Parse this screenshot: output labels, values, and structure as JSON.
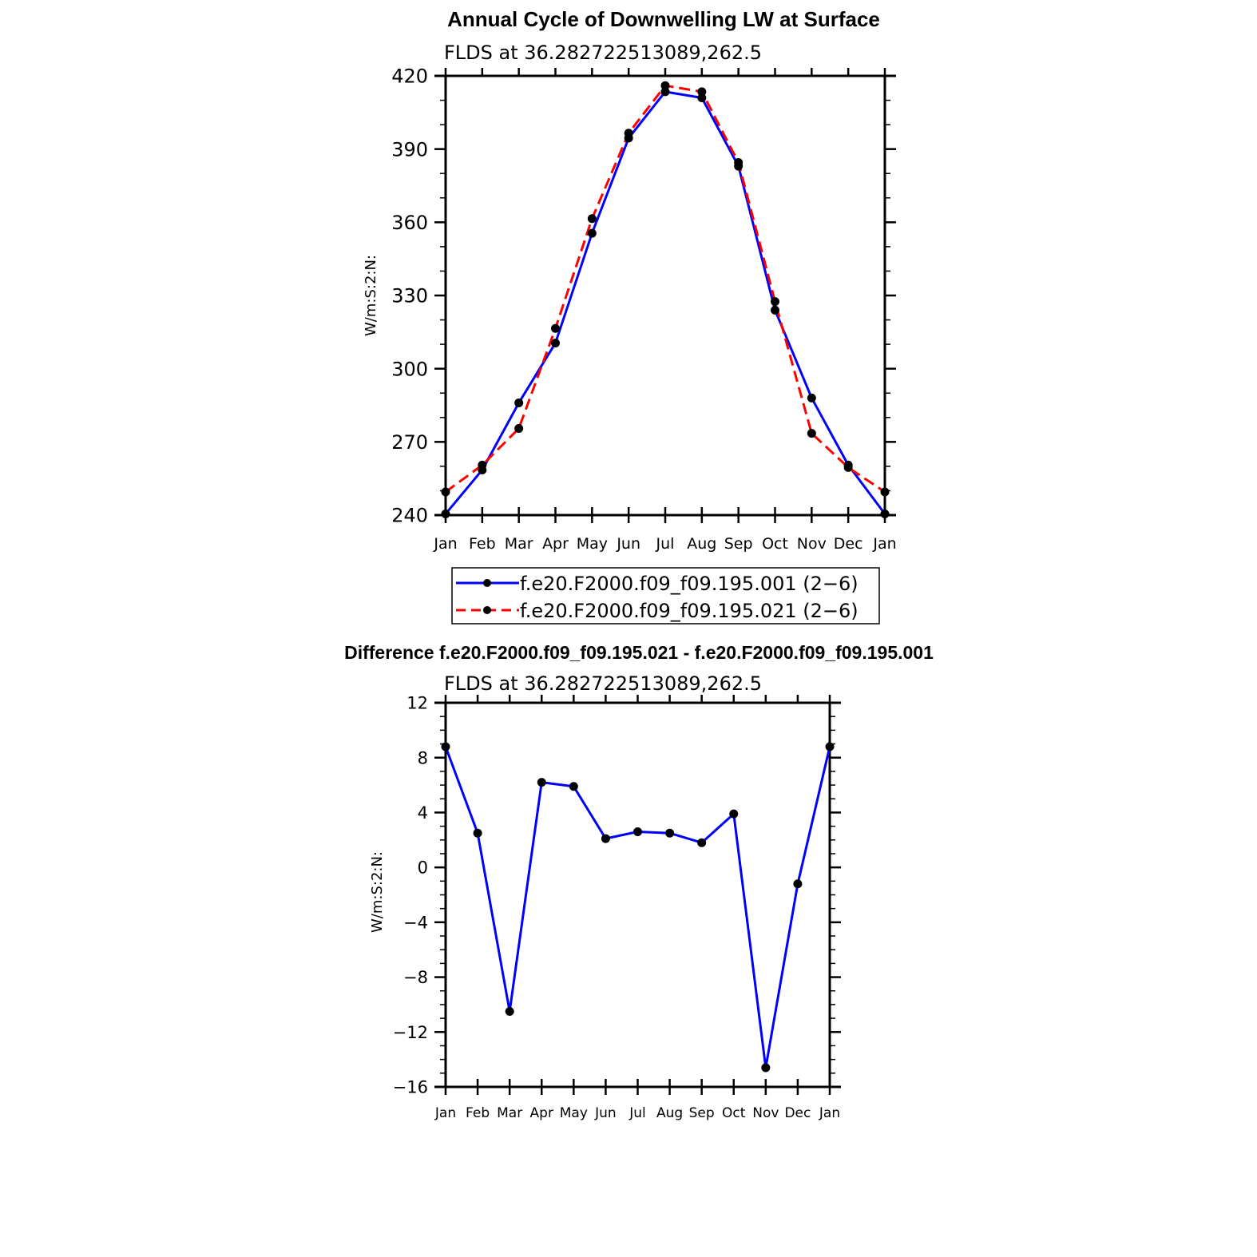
{
  "chart_data": [
    {
      "type": "line",
      "title": "Annual Cycle of Downwelling LW at Surface",
      "subtitle": "FLDS  at  36.282722513089,262.5",
      "ylabel": "W/m:S:2:N:",
      "xlabel": "",
      "categories": [
        "Jan",
        "Feb",
        "Mar",
        "Apr",
        "May",
        "Jun",
        "Jul",
        "Aug",
        "Sep",
        "Oct",
        "Nov",
        "Dec",
        "Jan"
      ],
      "ylim": [
        240,
        420
      ],
      "yticks": [
        240,
        270,
        300,
        330,
        360,
        390,
        420
      ],
      "grid": false,
      "legend_position": "below",
      "series": [
        {
          "name": "f.e20.F2000.f09_f09.195.001 (2−6)",
          "color": "#0000ff",
          "dash": "solid",
          "values": [
            240.5,
            258.5,
            286.0,
            310.5,
            355.5,
            394.5,
            413.5,
            411.0,
            383.0,
            324.0,
            288.0,
            260.5,
            240.5
          ]
        },
        {
          "name": "f.e20.F2000.f09_f09.195.021 (2−6)",
          "color": "#ff0000",
          "dash": "dashed",
          "values": [
            249.5,
            260.5,
            275.5,
            316.5,
            361.5,
            396.5,
            416.0,
            413.5,
            384.5,
            327.5,
            273.5,
            259.5,
            249.5
          ]
        }
      ]
    },
    {
      "type": "line",
      "title": "Difference f.e20.F2000.f09_f09.195.021 - f.e20.F2000.f09_f09.195.001",
      "subtitle": "FLDS  at  36.282722513089,262.5",
      "ylabel": "W/m:S:2:N:",
      "xlabel": "",
      "categories": [
        "Jan",
        "Feb",
        "Mar",
        "Apr",
        "May",
        "Jun",
        "Jul",
        "Aug",
        "Sep",
        "Oct",
        "Nov",
        "Dec",
        "Jan"
      ],
      "ylim": [
        -16,
        12
      ],
      "yticks": [
        -16,
        -12,
        -8,
        -4,
        0,
        4,
        8,
        12
      ],
      "ytick_labels": [
        "−16",
        "−12",
        "−8",
        "−4",
        "0",
        "4",
        "8",
        "12"
      ],
      "grid": false,
      "series": [
        {
          "color": "#0000ff",
          "dash": "solid",
          "values": [
            8.8,
            2.5,
            -10.5,
            6.2,
            5.9,
            2.1,
            2.6,
            2.5,
            1.8,
            3.9,
            -14.6,
            -1.2,
            8.8
          ]
        }
      ]
    }
  ]
}
